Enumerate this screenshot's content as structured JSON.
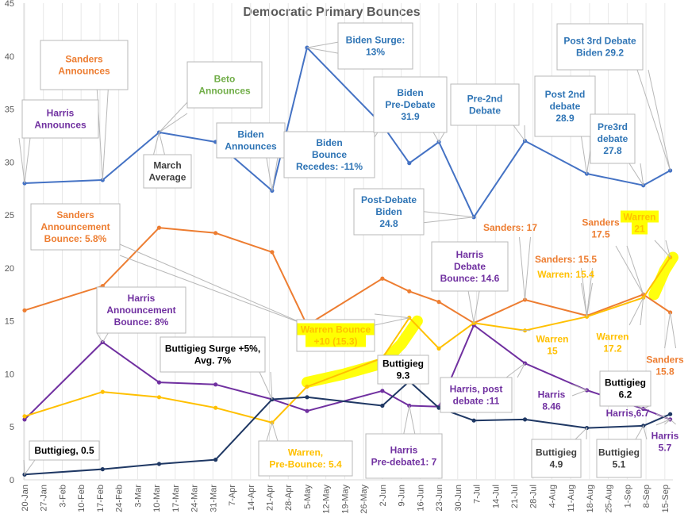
{
  "chart_data": {
    "type": "line",
    "title": "Democratic Primary Bounces",
    "xlabel": "",
    "ylabel": "",
    "ylim": [
      0,
      45
    ],
    "yticks": [
      "0",
      "5",
      "10",
      "15",
      "20",
      "25",
      "30",
      "35",
      "40",
      "45"
    ],
    "grid": "vertical",
    "x_tick_labels": [
      "20-Jan",
      "27-Jan",
      "3-Feb",
      "10-Feb",
      "17-Feb",
      "24-Feb",
      "3-Mar",
      "10-Mar",
      "17-Mar",
      "24-Mar",
      "31-Mar",
      "7-Apr",
      "14-Apr",
      "21-Apr",
      "28-Apr",
      "5-May",
      "12-May",
      "19-May",
      "26-May",
      "2-Jun",
      "9-Jun",
      "16-Jun",
      "23-Jun",
      "30-Jun",
      "7-Jul",
      "14-Jul",
      "21-Jul",
      "28-Jul",
      "4-Aug",
      "11-Aug",
      "18-Aug",
      "25-Aug",
      "1-Sep",
      "8-Sep",
      "15-Sep"
    ],
    "series": [
      {
        "color": "#4472C4",
        "points": [
          [
            "20-Jan",
            28
          ],
          [
            "18-Feb",
            28.3
          ],
          [
            "11-Mar",
            32.8
          ],
          [
            "1-Apr",
            31.9
          ],
          [
            "22-Apr",
            27.3
          ],
          [
            "5-May",
            40.8
          ],
          [
            "2-Jun",
            33.5
          ],
          [
            "12-Jun",
            29.9
          ],
          [
            "23-Jun",
            31.9
          ],
          [
            "6-Jul",
            24.8
          ],
          [
            "25-Jul",
            32
          ],
          [
            "17-Aug",
            28.9
          ],
          [
            "7-Sep",
            27.8
          ],
          [
            "17-Sep",
            29.2
          ]
        ]
      },
      {
        "color": "#ED7D31",
        "points": [
          [
            "20-Jan",
            16
          ],
          [
            "18-Feb",
            18.3
          ],
          [
            "11-Mar",
            23.8
          ],
          [
            "1-Apr",
            23.3
          ],
          [
            "22-Apr",
            21.5
          ],
          [
            "5-May",
            14.6
          ],
          [
            "2-Jun",
            19
          ],
          [
            "12-Jun",
            17.8
          ],
          [
            "23-Jun",
            16.8
          ],
          [
            "6-Jul",
            14.8
          ],
          [
            "25-Jul",
            17
          ],
          [
            "17-Aug",
            15.5
          ],
          [
            "7-Sep",
            17.5
          ],
          [
            "17-Sep",
            15.8
          ]
        ]
      },
      {
        "color": "#7030A0",
        "points": [
          [
            "20-Jan",
            5.7
          ],
          [
            "18-Feb",
            13
          ],
          [
            "11-Mar",
            9.2
          ],
          [
            "1-Apr",
            9
          ],
          [
            "22-Apr",
            7.6
          ],
          [
            "5-May",
            6.5
          ],
          [
            "2-Jun",
            8.4
          ],
          [
            "12-Jun",
            7
          ],
          [
            "23-Jun",
            6.9
          ],
          [
            "6-Jul",
            14.6
          ],
          [
            "25-Jul",
            11
          ],
          [
            "17-Aug",
            8.46
          ],
          [
            "7-Sep",
            6.7
          ],
          [
            "17-Sep",
            5.7
          ]
        ]
      },
      {
        "color": "#FFC000",
        "points": [
          [
            "20-Jan",
            6
          ],
          [
            "18-Feb",
            8.3
          ],
          [
            "11-Mar",
            7.8
          ],
          [
            "1-Apr",
            6.8
          ],
          [
            "22-Apr",
            5.4
          ],
          [
            "5-May",
            8.8
          ],
          [
            "2-Jun",
            11.5
          ],
          [
            "12-Jun",
            15.3
          ],
          [
            "23-Jun",
            12.4
          ],
          [
            "6-Jul",
            14.8
          ],
          [
            "25-Jul",
            14.1
          ],
          [
            "17-Aug",
            15.4
          ],
          [
            "7-Sep",
            17.2
          ],
          [
            "17-Sep",
            21
          ]
        ]
      },
      {
        "color": "#1F3864",
        "points": [
          [
            "20-Jan",
            0.5
          ],
          [
            "18-Feb",
            1
          ],
          [
            "11-Mar",
            1.5
          ],
          [
            "1-Apr",
            1.9
          ],
          [
            "22-Apr",
            7.6
          ],
          [
            "5-May",
            7.8
          ],
          [
            "2-Jun",
            7
          ],
          [
            "12-Jun",
            9.3
          ],
          [
            "23-Jun",
            6.8
          ],
          [
            "6-Jul",
            5.6
          ],
          [
            "25-Jul",
            5.7
          ],
          [
            "17-Aug",
            4.9
          ],
          [
            "7-Sep",
            5.1
          ],
          [
            "17-Sep",
            6.2
          ]
        ]
      }
    ],
    "highlight_color": "#FFFF00",
    "annotations": [
      {
        "lines": [
          "Harris",
          "Announces"
        ],
        "color": "#7030A0"
      },
      {
        "lines": [
          "Sanders",
          "Announces"
        ],
        "color": "#ED7D31"
      },
      {
        "lines": [
          "Beto",
          "Announces"
        ],
        "color": "#70AD47"
      },
      {
        "lines": [
          "March",
          "Average"
        ],
        "color": "#404040"
      },
      {
        "lines": [
          "Biden",
          "Announces"
        ],
        "color": "#2E74B5"
      },
      {
        "lines": [
          "Biden Surge:",
          "13%"
        ],
        "color": "#2E74B5"
      },
      {
        "lines": [
          "Biden",
          "Bounce",
          "Recedes: -11%"
        ],
        "color": "#2E74B5"
      },
      {
        "lines": [
          "Biden",
          "Pre-Debate",
          "31.9"
        ],
        "color": "#2E74B5"
      },
      {
        "lines": [
          "Pre-2nd",
          "Debate"
        ],
        "color": "#2E74B5"
      },
      {
        "lines": [
          "Post 2nd",
          "debate",
          "28.9"
        ],
        "color": "#2E74B5"
      },
      {
        "lines": [
          "Post  3rd Debate",
          "Biden 29.2"
        ],
        "color": "#2E74B5"
      },
      {
        "lines": [
          "Pre3rd",
          "debate",
          "27.8"
        ],
        "color": "#2E74B5"
      },
      {
        "lines": [
          "Post-Debate",
          "Biden",
          "24.8"
        ],
        "color": "#2E74B5"
      },
      {
        "lines": [
          "Sanders",
          "Announcement",
          "Bounce: 5.8%"
        ],
        "color": "#ED7D31"
      },
      {
        "lines": [
          "Sanders: 17"
        ],
        "color": "#ED7D31"
      },
      {
        "lines": [
          "Harris",
          "Debate",
          "Bounce: 14.6"
        ],
        "color": "#7030A0"
      },
      {
        "lines": [
          "Sanders: 15.5"
        ],
        "color": "#ED7D31"
      },
      {
        "lines": [
          "Warren: 15.4"
        ],
        "color": "#FFC000"
      },
      {
        "lines": [
          "Sanders",
          "17.5"
        ],
        "color": "#ED7D31"
      },
      {
        "lines": [
          "Warren",
          "21"
        ],
        "color": "#FFC000"
      },
      {
        "lines": [
          "Harris",
          "Announcement",
          "Bounce: 8%"
        ],
        "color": "#7030A0"
      },
      {
        "lines": [
          "Warren Bounce",
          "+10 (15.3)"
        ],
        "color": "#FFC000"
      },
      {
        "lines": [
          "Warren",
          "15"
        ],
        "color": "#FFC000"
      },
      {
        "lines": [
          "Warren",
          "17.2"
        ],
        "color": "#FFC000"
      },
      {
        "lines": [
          "Sanders",
          "15.8"
        ],
        "color": "#ED7D31"
      },
      {
        "lines": [
          "Buttigieg Surge +5%,",
          "Avg. 7%"
        ],
        "color": "#000000"
      },
      {
        "lines": [
          "Buttigieg",
          "9.3"
        ],
        "color": "#000000"
      },
      {
        "lines": [
          "Harris, post",
          "debate :11"
        ],
        "color": "#7030A0"
      },
      {
        "lines": [
          "Harris",
          "8.46"
        ],
        "color": "#7030A0"
      },
      {
        "lines": [
          "Buttigieg",
          "6.2"
        ],
        "color": "#000000"
      },
      {
        "lines": [
          "Harris,6.7"
        ],
        "color": "#7030A0"
      },
      {
        "lines": [
          "Harris",
          "5.7"
        ],
        "color": "#7030A0"
      },
      {
        "lines": [
          "Buttigieg, 0.5"
        ],
        "color": "#000000"
      },
      {
        "lines": [
          "Warren,",
          "Pre-Bounce: 5.4"
        ],
        "color": "#FFC000"
      },
      {
        "lines": [
          "Harris",
          "Pre-debate1: 7"
        ],
        "color": "#7030A0"
      },
      {
        "lines": [
          "Buttigieg",
          "4.9"
        ],
        "color": "#404040"
      },
      {
        "lines": [
          "Buttigieg",
          "5.1"
        ],
        "color": "#404040"
      }
    ]
  }
}
